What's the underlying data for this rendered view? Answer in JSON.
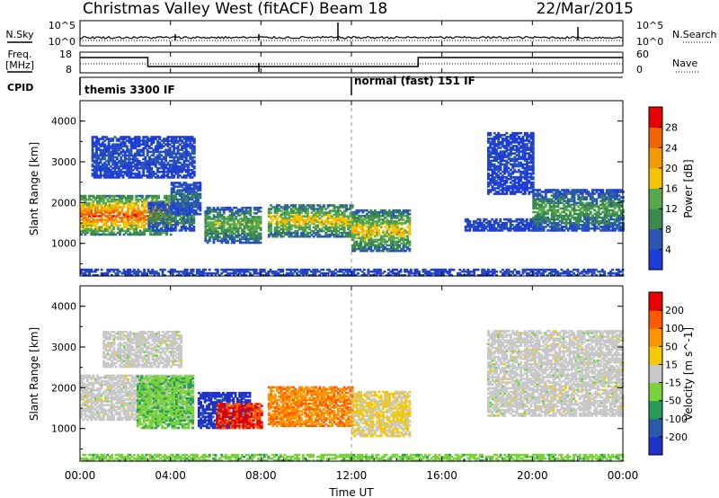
{
  "header": {
    "station": "Christmas Valley West (fitACF)",
    "beam": "Beam 18",
    "date": "22/Mar/2015"
  },
  "noise_panel": {
    "left_label": "N.Sky",
    "right_label": "N.Search",
    "left_ticks": [
      "10^5",
      "10^0"
    ],
    "right_ticks": [
      "10^5",
      "10^0"
    ]
  },
  "freq_panel": {
    "left_label_1": "Freq.",
    "left_label_2": "[MHz]",
    "right_label": "Nave",
    "left_ticks": [
      "18",
      "8"
    ],
    "right_ticks": [
      "60",
      "0"
    ]
  },
  "cpid_panel": {
    "label": "CPID",
    "modes": [
      {
        "name": "themis 3300 IF",
        "start_hour": 0
      },
      {
        "name": "normal (fast) 151 IF",
        "start_hour": 12
      }
    ]
  },
  "x_axis": {
    "label": "Time UT",
    "ticks": [
      "00:00",
      "04:00",
      "08:00",
      "12:00",
      "16:00",
      "20:00",
      "00:00"
    ],
    "range_hours": [
      0,
      24
    ]
  },
  "colors": {
    "power_scale": [
      "#1e3cd7",
      "#2a56b5",
      "#3a8a4e",
      "#5aa84e",
      "#f5c400",
      "#f59a00",
      "#f06400",
      "#e60000"
    ],
    "velocity_scale": [
      "#e60000",
      "#ff5a00",
      "#ff9600",
      "#f5c800",
      "#c8c8c8",
      "#78d23c",
      "#2a9a5a",
      "#2a5ab0",
      "#1e32c8"
    ]
  },
  "chart_data": [
    {
      "type": "heatmap",
      "name": "power",
      "ylabel": "Slant Range [km]",
      "yticks": [
        "1000",
        "2000",
        "3000",
        "4000"
      ],
      "ylim": [
        200,
        4500
      ],
      "colorbar": {
        "label": "Power [dB]",
        "ticks": [
          "4",
          "8",
          "12",
          "16",
          "20",
          "24",
          "28"
        ],
        "range": [
          0,
          32
        ]
      },
      "regions": [
        {
          "t": [
            0.0,
            4.0
          ],
          "r": [
            1200,
            2150
          ],
          "level": 26
        },
        {
          "t": [
            3.0,
            5.0
          ],
          "r": [
            1300,
            2000
          ],
          "level": 10
        },
        {
          "t": [
            4.0,
            5.3
          ],
          "r": [
            1700,
            2500
          ],
          "level": 8
        },
        {
          "t": [
            0.5,
            5.0
          ],
          "r": [
            2600,
            3600
          ],
          "level": 5
        },
        {
          "t": [
            5.5,
            8.0
          ],
          "r": [
            1000,
            1900
          ],
          "level": 14
        },
        {
          "t": [
            8.3,
            12.0
          ],
          "r": [
            1150,
            1950
          ],
          "level": 18
        },
        {
          "t": [
            12.0,
            14.6
          ],
          "r": [
            800,
            1800
          ],
          "level": 18
        },
        {
          "t": [
            17.0,
            20.5
          ],
          "r": [
            1300,
            1600
          ],
          "level": 4
        },
        {
          "t": [
            20.0,
            24.0
          ],
          "r": [
            1300,
            2300
          ],
          "level": 12
        },
        {
          "t": [
            18.0,
            20.0
          ],
          "r": [
            2200,
            3700
          ],
          "level": 4
        },
        {
          "t": [
            0.0,
            24.0
          ],
          "r": [
            200,
            350
          ],
          "level": 4
        }
      ]
    },
    {
      "type": "heatmap",
      "name": "velocity",
      "ylabel": "Slant Range [km]",
      "yticks": [
        "1000",
        "2000",
        "3000",
        "4000"
      ],
      "ylim": [
        200,
        4500
      ],
      "colorbar": {
        "label": "Velocity [m s^-1]",
        "ticks": [
          "200",
          "100",
          "50",
          "15",
          "-15",
          "-50",
          "-100",
          "-200"
        ],
        "range": [
          -250,
          250
        ]
      },
      "regions": [
        {
          "t": [
            0.0,
            5.0
          ],
          "r": [
            1200,
            2300
          ],
          "value": 0
        },
        {
          "t": [
            1.0,
            4.5
          ],
          "r": [
            2500,
            3400
          ],
          "value": 0
        },
        {
          "t": [
            2.5,
            5.0
          ],
          "r": [
            1000,
            2300
          ],
          "value": -70
        },
        {
          "t": [
            5.2,
            7.5
          ],
          "r": [
            1000,
            1900
          ],
          "value": -220
        },
        {
          "t": [
            6.0,
            8.0
          ],
          "r": [
            1000,
            1600
          ],
          "value": 200
        },
        {
          "t": [
            8.3,
            12.0
          ],
          "r": [
            1050,
            2000
          ],
          "value": 130
        },
        {
          "t": [
            12.0,
            14.6
          ],
          "r": [
            800,
            1900
          ],
          "value": 30
        },
        {
          "t": [
            18.0,
            24.0
          ],
          "r": [
            1300,
            3400
          ],
          "value": 0
        },
        {
          "t": [
            0.0,
            24.0
          ],
          "r": [
            200,
            350
          ],
          "value": -60
        }
      ]
    }
  ]
}
